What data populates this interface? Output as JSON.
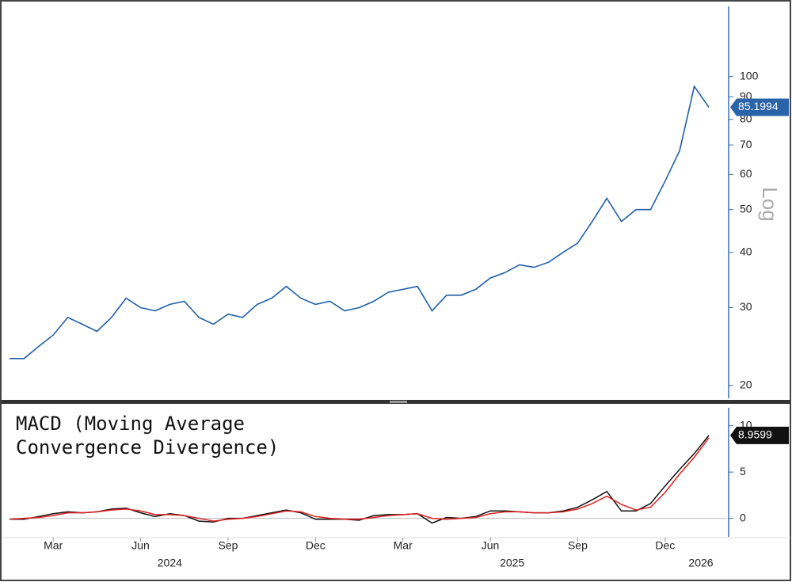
{
  "chart_data": [
    {
      "type": "line",
      "log_scale": true,
      "scale_label": "Log",
      "ylim": [
        18.7,
        143
      ],
      "yticks": [
        20,
        30,
        40,
        50,
        60,
        70,
        80,
        90,
        100
      ],
      "series": [
        {
          "color": "#1f5fa8",
          "values": [
            23,
            23,
            24.5,
            26,
            28.5,
            27.5,
            26.5,
            28.5,
            31.5,
            30,
            29.5,
            30.5,
            31,
            28.5,
            27.5,
            29,
            28.5,
            30.5,
            31.5,
            33.5,
            31.5,
            30.5,
            31,
            29.5,
            30,
            31,
            32.5,
            33,
            33.5,
            29.5,
            32,
            32,
            33,
            35,
            36,
            37.5,
            37,
            38,
            40,
            42,
            47,
            53,
            47,
            50,
            50,
            58,
            68,
            95,
            85.1994
          ]
        }
      ]
    },
    {
      "type": "line",
      "title": "MACD (Moving Average Convergence Divergence)",
      "categories": [
        null,
        null,
        null,
        "Mar",
        null,
        null,
        null,
        null,
        null,
        "Jun",
        null,
        null,
        null,
        null,
        null,
        "Sep",
        null,
        null,
        null,
        null,
        null,
        "Dec",
        null,
        null,
        null,
        null,
        null,
        "Mar",
        null,
        null,
        null,
        null,
        null,
        "Jun",
        null,
        null,
        null,
        null,
        null,
        "Sep",
        null,
        null,
        null,
        null,
        null,
        "Dec",
        null,
        null,
        null
      ],
      "groups": [
        {
          "label": "2024",
          "count": 23
        },
        {
          "label": "2025",
          "count": 24
        },
        {
          "label": "2026",
          "count": 2
        }
      ],
      "ylim": [
        -2,
        12.2
      ],
      "yticks": [
        0,
        5,
        10
      ],
      "series": [
        {
          "color": "#111111",
          "values": [
            -0.1,
            -0.1,
            0.2,
            0.5,
            0.7,
            0.6,
            0.7,
            1.0,
            1.1,
            0.6,
            0.2,
            0.5,
            0.3,
            -0.3,
            -0.4,
            0.0,
            0.0,
            0.3,
            0.6,
            0.9,
            0.6,
            -0.1,
            -0.1,
            -0.1,
            -0.2,
            0.3,
            0.4,
            0.4,
            0.5,
            -0.5,
            0.1,
            0.0,
            0.2,
            0.8,
            0.8,
            0.7,
            0.6,
            0.6,
            0.8,
            1.2,
            2.0,
            2.9,
            0.8,
            0.8,
            1.6,
            3.5,
            5.3,
            7.0,
            8.9599
          ]
        },
        {
          "color": "#e02020",
          "values": [
            -0.1,
            0,
            0.1,
            0.3,
            0.6,
            0.6,
            0.7,
            0.9,
            1.0,
            0.8,
            0.4,
            0.4,
            0.3,
            0,
            -0.3,
            -0.1,
            0,
            0.2,
            0.5,
            0.8,
            0.7,
            0.2,
            0.0,
            -0.1,
            -0.1,
            0.1,
            0.3,
            0.4,
            0.5,
            0.0,
            -0.1,
            0.0,
            0.1,
            0.5,
            0.7,
            0.7,
            0.6,
            0.6,
            0.7,
            1.0,
            1.6,
            2.4,
            1.5,
            0.9,
            1.2,
            2.8,
            4.8,
            6.6,
            8.7
          ]
        }
      ]
    }
  ]
}
